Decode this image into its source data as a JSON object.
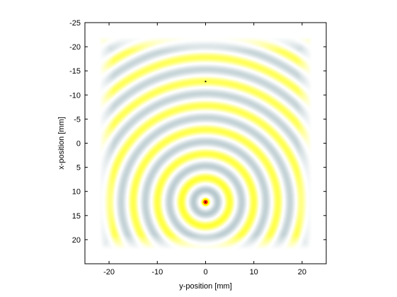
{
  "chart_data": {
    "type": "heatmap",
    "title": "",
    "xlabel": "y-position [mm]",
    "ylabel": "x-position [mm]",
    "xlim": [
      -25,
      25
    ],
    "ylim": [
      -25,
      25
    ],
    "y_axis_reversed": true,
    "x_ticks": [
      -20,
      -10,
      0,
      10,
      20
    ],
    "x_tick_labels": [
      "-20",
      "-10",
      "0",
      "10",
      "20"
    ],
    "y_ticks": [
      -25,
      -20,
      -15,
      -10,
      -5,
      0,
      5,
      10,
      15,
      20
    ],
    "y_tick_labels": [
      "-25",
      "-20",
      "-15",
      "-10",
      "-5",
      "0",
      "5",
      "10",
      "15",
      "20"
    ],
    "grid": false,
    "field_extent": {
      "x": [
        -22,
        22
      ],
      "y": [
        -22,
        22
      ]
    },
    "source_position": {
      "x": 0,
      "y": 12.2
    },
    "sensor_position": {
      "x": 0,
      "y": -12.8
    },
    "ring_spacing_mm": 5,
    "colormap": {
      "positive": "#ffff00",
      "negative": "#aabfc5",
      "zero": "#ffffff",
      "peak": "#ff2a00",
      "peak_core": "#000000"
    },
    "frame_color": "#000000"
  }
}
